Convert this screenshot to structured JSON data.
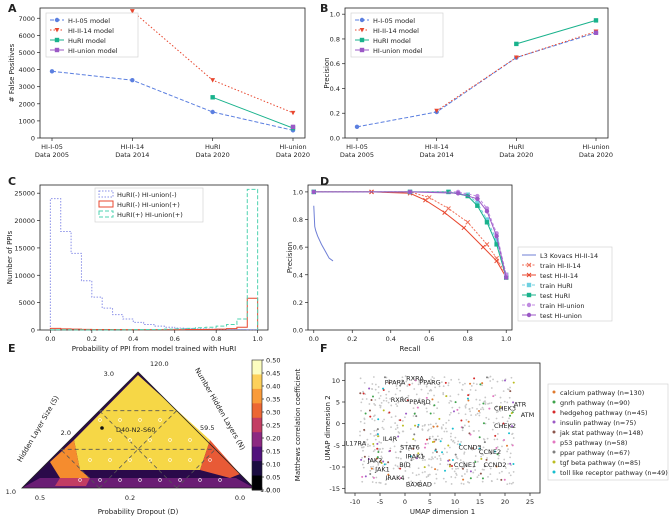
{
  "panels": {
    "A": "A",
    "B": "B",
    "C": "C",
    "D": "D",
    "E": "E",
    "F": "F"
  },
  "colors": {
    "hi05": "#5b7fe0",
    "hi14": "#e8472f",
    "huri": "#19b28c",
    "union": "#9b59c6",
    "l3": "#6f7fd6",
    "train14": "#f0705a",
    "test14": "#e8472f",
    "trainhuri": "#6fd0e0",
    "testhuri": "#19b28c",
    "trainunion": "#c08be0",
    "testunion": "#9b59c6"
  },
  "chart_data": [
    {
      "type": "line",
      "panel": "A",
      "xlabel": "",
      "ylabel": "# False Positives",
      "categories": [
        "HI-I-05\nData 2005",
        "HI-II-14\nData 2014",
        "HuRI\nData 2020",
        "HI-union\nData 2020"
      ],
      "ylim": [
        0,
        7600
      ],
      "yticks": [
        0,
        1000,
        2000,
        3000,
        4000,
        5000,
        6000,
        7000
      ],
      "series": [
        {
          "name": "H-I-05 model",
          "values": [
            3900,
            3380,
            1520,
            450
          ]
        },
        {
          "name": "HI-II-14 model",
          "values": [
            null,
            7420,
            3380,
            1470
          ]
        },
        {
          "name": "HuRI model",
          "values": [
            null,
            null,
            2380,
            580
          ]
        },
        {
          "name": "HI-union model",
          "values": [
            null,
            null,
            null,
            650
          ]
        }
      ]
    },
    {
      "type": "line",
      "panel": "B",
      "xlabel": "",
      "ylabel": "Precision",
      "categories": [
        "HI-I-05\nData 2005",
        "HI-II-14\nData 2014",
        "HuRI\nData 2020",
        "HI-union\nData 2020"
      ],
      "ylim": [
        0,
        1.05
      ],
      "yticks": [
        0.0,
        0.2,
        0.4,
        0.6,
        0.8,
        1.0
      ],
      "series": [
        {
          "name": "H-I-05 model",
          "values": [
            0.09,
            0.21,
            0.65,
            0.85
          ]
        },
        {
          "name": "HI-II-14 model",
          "values": [
            null,
            0.22,
            0.65,
            0.86
          ]
        },
        {
          "name": "HuRI model",
          "values": [
            null,
            null,
            0.76,
            0.95
          ]
        },
        {
          "name": "HI-union model",
          "values": [
            null,
            null,
            null,
            0.85
          ]
        }
      ]
    },
    {
      "type": "histogram",
      "panel": "C",
      "xlabel": "Probability of PPI from model trained with HuRI",
      "ylabel": "Number of PPIs",
      "xlim": [
        -0.05,
        1.05
      ],
      "ylim": [
        0,
        26500
      ],
      "xticks": [
        0.0,
        0.2,
        0.4,
        0.6,
        0.8,
        1.0
      ],
      "yticks": [
        0,
        5000,
        10000,
        15000,
        20000,
        25000
      ],
      "bins": [
        0.0,
        0.05,
        0.1,
        0.15,
        0.2,
        0.25,
        0.3,
        0.35,
        0.4,
        0.45,
        0.5,
        0.55,
        0.6,
        0.65,
        0.7,
        0.75,
        0.8,
        0.85,
        0.9,
        0.95,
        1.0
      ],
      "series": [
        {
          "name": "HuRI(-) HI-union(-)",
          "values": [
            24000,
            18000,
            14000,
            9000,
            6000,
            4000,
            2800,
            2000,
            1400,
            1000,
            700,
            500,
            350,
            250,
            200,
            150,
            120,
            100,
            80,
            60
          ]
        },
        {
          "name": "HuRI(-) HI-union(+)",
          "values": [
            300,
            200,
            150,
            120,
            100,
            90,
            80,
            70,
            60,
            60,
            60,
            60,
            70,
            80,
            90,
            110,
            150,
            250,
            500,
            5800
          ]
        },
        {
          "name": "HuRI(+) HI-union(+)",
          "values": [
            50,
            40,
            30,
            30,
            30,
            30,
            40,
            50,
            60,
            80,
            100,
            150,
            200,
            300,
            400,
            500,
            700,
            1000,
            2000,
            25700
          ]
        }
      ]
    },
    {
      "type": "line",
      "panel": "D",
      "xlabel": "Recall",
      "ylabel": "Precision",
      "xlim": [
        -0.03,
        1.03
      ],
      "ylim": [
        0,
        1.05
      ],
      "xticks": [
        0.0,
        0.2,
        0.4,
        0.6,
        0.8,
        1.0
      ],
      "yticks": [
        0.0,
        0.2,
        0.4,
        0.6,
        0.8,
        1.0
      ],
      "series": [
        {
          "name": "L3 Kovacs HI-II-14",
          "x": [
            0.0,
            0.005,
            0.01,
            0.02,
            0.04,
            0.06,
            0.08,
            0.1
          ],
          "y": [
            0.9,
            0.75,
            0.72,
            0.68,
            0.62,
            0.57,
            0.52,
            0.5
          ]
        },
        {
          "name": "train HI-II-14",
          "x": [
            0.0,
            0.3,
            0.5,
            0.6,
            0.7,
            0.8,
            0.9,
            0.95,
            1.0
          ],
          "y": [
            1.0,
            1.0,
            1.0,
            0.96,
            0.88,
            0.78,
            0.62,
            0.52,
            0.4
          ]
        },
        {
          "name": "test HI-II-14",
          "x": [
            0.0,
            0.3,
            0.5,
            0.58,
            0.68,
            0.78,
            0.88,
            0.95,
            1.0
          ],
          "y": [
            1.0,
            1.0,
            0.99,
            0.94,
            0.85,
            0.74,
            0.6,
            0.5,
            0.38
          ]
        },
        {
          "name": "train HuRI",
          "x": [
            0.0,
            0.5,
            0.7,
            0.8,
            0.85,
            0.9,
            0.95,
            1.0
          ],
          "y": [
            1.0,
            1.0,
            1.0,
            0.98,
            0.92,
            0.8,
            0.65,
            0.4
          ]
        },
        {
          "name": "test HuRI",
          "x": [
            0.0,
            0.5,
            0.7,
            0.8,
            0.85,
            0.9,
            0.95,
            1.0
          ],
          "y": [
            1.0,
            1.0,
            1.0,
            0.97,
            0.9,
            0.78,
            0.62,
            0.38
          ]
        },
        {
          "name": "train HI-union",
          "x": [
            0.0,
            0.5,
            0.75,
            0.85,
            0.9,
            0.95,
            1.0
          ],
          "y": [
            1.0,
            1.0,
            1.0,
            0.97,
            0.88,
            0.7,
            0.4
          ]
        },
        {
          "name": "test HI-union",
          "x": [
            0.0,
            0.5,
            0.75,
            0.85,
            0.9,
            0.95,
            1.0
          ],
          "y": [
            1.0,
            1.0,
            0.99,
            0.95,
            0.86,
            0.68,
            0.38
          ]
        }
      ]
    },
    {
      "type": "ternary",
      "panel": "E",
      "axes": [
        "Hidden Layer Size (S)",
        "Number Hidden Layers (N)",
        "Probability Dropout (D)"
      ],
      "left_ticks": [
        "1.0",
        "2.0",
        "3.0"
      ],
      "right_ticks": [
        "120.0",
        "59.5",
        "1.0"
      ],
      "bottom_ticks": [
        "0.5",
        "0.2",
        "0.0"
      ],
      "annotation": "D40-N2-S60",
      "colorbar": {
        "label": "Matthews correlation coefficient",
        "ticks": [
          "0.00",
          "0.05",
          "0.10",
          "0.15",
          "0.20",
          "0.25",
          "0.30",
          "0.35",
          "0.40",
          "0.45",
          "0.50"
        ]
      }
    },
    {
      "type": "scatter",
      "panel": "F",
      "xlabel": "UMAP dimension 1",
      "ylabel": "UMAP dimension 2",
      "xlim": [
        -12,
        27
      ],
      "ylim": [
        -16,
        14
      ],
      "xticks": [
        -10,
        -5,
        0,
        5,
        10,
        15,
        20,
        25
      ],
      "yticks": [
        -15,
        -10,
        -5,
        0,
        5,
        10
      ],
      "legend": [
        {
          "name": "calcium pathway (n=130)",
          "color": "#e07a2f"
        },
        {
          "name": "gnrh pathway (n=90)",
          "color": "#3ea34b"
        },
        {
          "name": "hedgehog pathway (n=45)",
          "color": "#d62a2a"
        },
        {
          "name": "insulin pathway (n=75)",
          "color": "#9b59c6"
        },
        {
          "name": "jak stat pathway (n=148)",
          "color": "#8c564b"
        },
        {
          "name": "p53 pathway (n=58)",
          "color": "#e377c2"
        },
        {
          "name": "ppar pathway (n=67)",
          "color": "#7f7f7f"
        },
        {
          "name": "tgf beta pathway (n=85)",
          "color": "#bcbd22"
        },
        {
          "name": "toll like receptor pathway (n=49)",
          "color": "#17becf"
        }
      ],
      "genes": [
        "RXRA",
        "PPARA",
        "PPARG",
        "RXRG",
        "PPARD",
        "CHEK3",
        "ATR",
        "ATM",
        "CHEK2",
        "IL17RA",
        "IL4R",
        "STAT6",
        "IRAK1",
        "CCND3",
        "CCNE2",
        "JAK2",
        "JAK1",
        "BID",
        "IRAK4",
        "BAX",
        "BAD",
        "CCNE1",
        "CCND2"
      ]
    }
  ]
}
